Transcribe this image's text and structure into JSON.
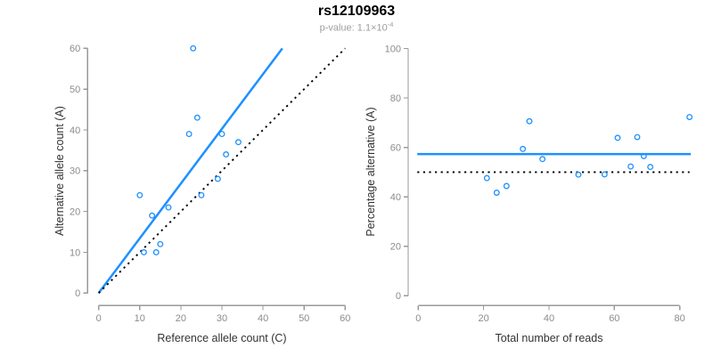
{
  "header": {
    "title": "rs12109963",
    "pvalue_base": "p-value: 1.1×10",
    "pvalue_exponent": "-4"
  },
  "colors": {
    "accent_blue": "#1E90FF",
    "dotted_black": "#000000",
    "axis_gray": "#999999",
    "tick_label_gray": "#8c8c8c",
    "axis_title_color": "#333333"
  },
  "chart_data": [
    {
      "type": "scatter",
      "panel": "allele-counts",
      "xlabel": "Reference allele count (C)",
      "ylabel": "Alternative allele count (A)",
      "xlim": [
        0,
        60
      ],
      "ylim": [
        0,
        60
      ],
      "xticks": [
        0,
        10,
        20,
        30,
        40,
        50,
        60
      ],
      "yticks": [
        0,
        10,
        20,
        30,
        40,
        50,
        60
      ],
      "grid": false,
      "legend": "none",
      "points": [
        [
          23,
          60
        ],
        [
          24,
          43
        ],
        [
          22,
          39
        ],
        [
          30,
          39
        ],
        [
          34,
          37
        ],
        [
          31,
          34
        ],
        [
          29,
          28
        ],
        [
          10,
          24
        ],
        [
          25,
          24
        ],
        [
          17,
          21
        ],
        [
          13,
          19
        ],
        [
          15,
          12
        ],
        [
          11,
          10
        ],
        [
          14,
          10
        ]
      ],
      "lines": [
        {
          "name": "fitted-ratio-line",
          "style": "solid",
          "color_key": "accent_blue",
          "from": [
            0,
            0
          ],
          "to": [
            44.7,
            60
          ]
        },
        {
          "name": "identity-line",
          "style": "dotted",
          "color_key": "dotted_black",
          "from": [
            0,
            0
          ],
          "to": [
            60,
            60
          ]
        }
      ]
    },
    {
      "type": "scatter",
      "panel": "percentage-vs-coverage",
      "xlabel": "Total number of reads",
      "ylabel": "Percentage alternative (A)",
      "xlim": [
        0,
        80
      ],
      "ylim": [
        0,
        100
      ],
      "xticks": [
        0,
        20,
        40,
        60,
        80
      ],
      "yticks": [
        0,
        20,
        40,
        60,
        80,
        100
      ],
      "grid": false,
      "legend": "none",
      "points": [
        [
          83,
          72.3
        ],
        [
          67,
          64.2
        ],
        [
          61,
          63.9
        ],
        [
          69,
          56.5
        ],
        [
          71,
          52.1
        ],
        [
          65,
          52.3
        ],
        [
          57,
          49.1
        ],
        [
          34,
          70.6
        ],
        [
          49,
          49.0
        ],
        [
          38,
          55.3
        ],
        [
          32,
          59.4
        ],
        [
          27,
          44.4
        ],
        [
          21,
          47.6
        ],
        [
          24,
          41.7
        ]
      ],
      "lines": [
        {
          "name": "mean-percentage-line",
          "style": "solid",
          "color_key": "accent_blue",
          "from": [
            -0.3,
            57.3
          ],
          "to": [
            83.4,
            57.3
          ]
        },
        {
          "name": "fifty-percent-line",
          "style": "dotted",
          "color_key": "dotted_black",
          "from": [
            -0.3,
            50
          ],
          "to": [
            83.0,
            50
          ]
        }
      ]
    }
  ]
}
